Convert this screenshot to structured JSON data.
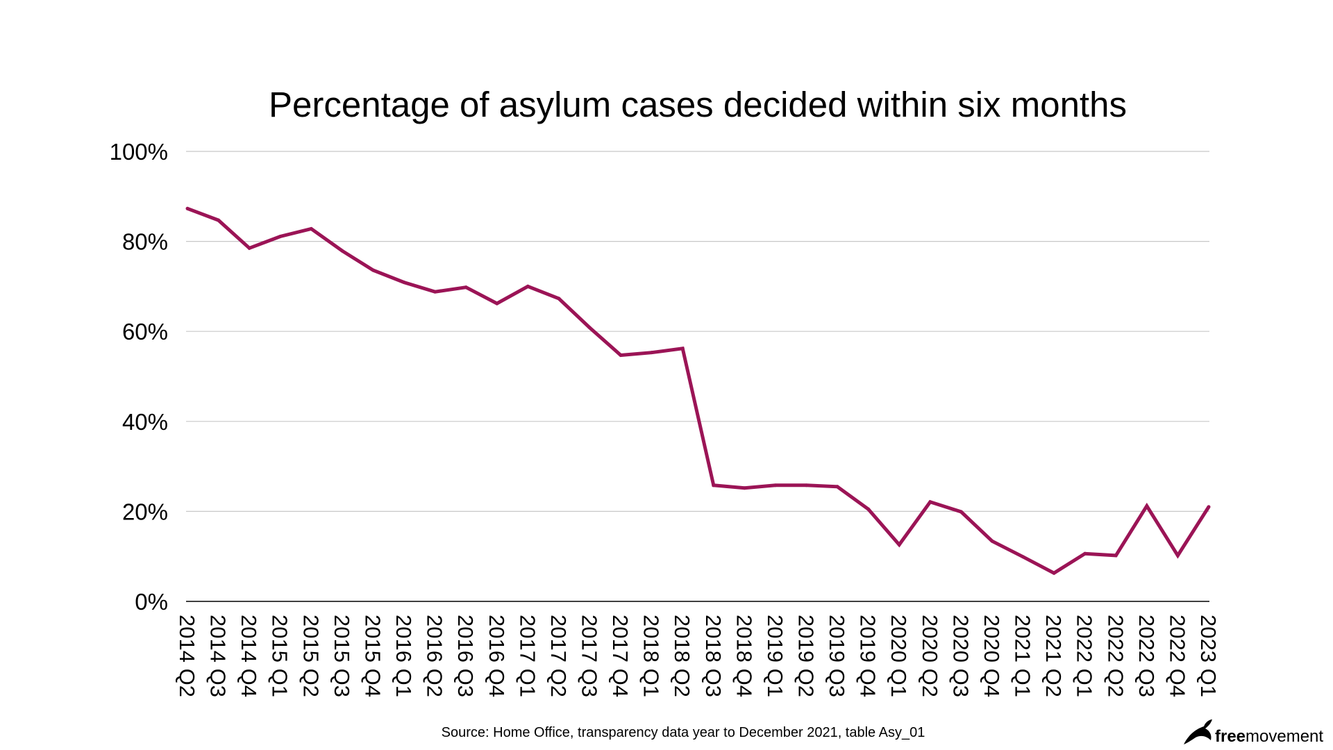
{
  "chart_data": {
    "type": "line",
    "title": "Percentage of asylum cases decided within six months",
    "xlabel": "",
    "ylabel": "",
    "ylim": [
      0,
      100
    ],
    "y_ticks": [
      "0%",
      "20%",
      "40%",
      "60%",
      "80%",
      "100%"
    ],
    "y_tick_values": [
      0,
      20,
      40,
      60,
      80,
      100
    ],
    "grid": true,
    "legend": "none",
    "categories": [
      "2014 Q2",
      "2014 Q3",
      "2014 Q4",
      "2015 Q1",
      "2015 Q2",
      "2015 Q3",
      "2015 Q4",
      "2016 Q1",
      "2016 Q2",
      "2016 Q3",
      "2016 Q4",
      "2017 Q1",
      "2017 Q2",
      "2017 Q3",
      "2017 Q4",
      "2018 Q1",
      "2018 Q2",
      "2018 Q3",
      "2018 Q4",
      "2019 Q1",
      "2019 Q2",
      "2019 Q3",
      "2019 Q4",
      "2020 Q1",
      "2020 Q2",
      "2020 Q3",
      "2020 Q4",
      "2021 Q1",
      "2021 Q2",
      "2022 Q1",
      "2022 Q2",
      "2022 Q3",
      "2022 Q4",
      "2023 Q1"
    ],
    "series": [
      {
        "values": [
          87.3,
          84.7,
          78.5,
          81.1,
          82.8,
          77.9,
          73.6,
          70.9,
          68.8,
          69.8,
          66.2,
          70.0,
          67.3,
          60.8,
          54.7,
          55.3,
          56.2,
          25.8,
          25.2,
          25.8,
          25.8,
          25.5,
          20.5,
          12.6,
          22.1,
          19.9,
          13.4,
          9.9,
          6.3,
          10.6,
          10.2,
          21.2,
          10.2,
          21.0
        ]
      }
    ]
  },
  "colors": {
    "line": "#9b1456",
    "grid": "#c8c8c8",
    "axis": "#000000",
    "text": "#000000"
  },
  "source": "Source: Home Office, transparency data year to December 2021, table Asy_01",
  "logo": {
    "bold": "free",
    "regular": "movement",
    "icon": "bird-icon"
  }
}
